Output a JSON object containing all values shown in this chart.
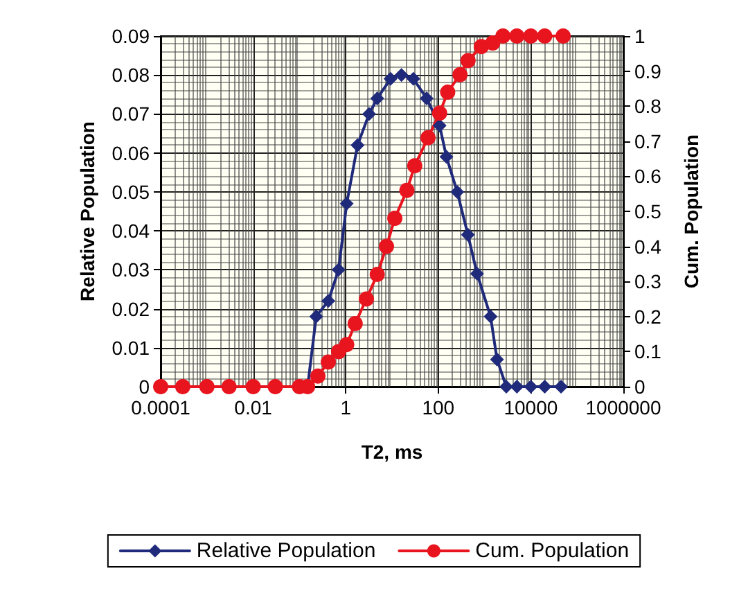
{
  "chart_data": {
    "type": "line",
    "xlabel": "T2, ms",
    "ylabel": "Relative Population",
    "y2label": "Cum. Population",
    "log": "x",
    "xlim": [
      0.0001,
      1000000
    ],
    "xticks": [
      0.0001,
      0.01,
      1,
      100,
      10000,
      1000000
    ],
    "ylim": [
      0,
      0.09
    ],
    "yticks": [
      0,
      0.01,
      0.02,
      0.03,
      0.04,
      0.05,
      0.06,
      0.07,
      0.08,
      0.09
    ],
    "y2lim": [
      0,
      1
    ],
    "y2ticks": [
      0,
      0.1,
      0.2,
      0.3,
      0.4,
      0.5,
      0.6,
      0.7,
      0.8,
      0.9,
      1
    ],
    "grid": true,
    "legend": "bottom",
    "line_style": "solid",
    "series": [
      {
        "name": "Relative Population",
        "color": "#1f2a7a",
        "marker": "diamond",
        "x": [
          0.15,
          0.23,
          0.42,
          0.7,
          1.05,
          1.8,
          3.2,
          4.8,
          9.3,
          16,
          29,
          56,
          107,
          150,
          257,
          437,
          690,
          1350,
          1860,
          2950,
          5000,
          10000,
          20000,
          45000
        ],
        "values": [
          0,
          0.018,
          0.022,
          0.03,
          0.047,
          0.062,
          0.07,
          0.074,
          0.079,
          0.08,
          0.079,
          0.074,
          0.067,
          0.059,
          0.05,
          0.039,
          0.029,
          0.018,
          0.007,
          0,
          0,
          0,
          0,
          0
        ]
      },
      {
        "name": "Cum. Population",
        "color": "#e8141e",
        "marker": "circle",
        "axis": "y2",
        "x": [
          0.0001,
          0.0003,
          0.001,
          0.003,
          0.01,
          0.03,
          0.1,
          0.15,
          0.25,
          0.42,
          0.7,
          1.05,
          1.6,
          2.8,
          4.8,
          7.6,
          11.5,
          21,
          31,
          60,
          107,
          160,
          295,
          440,
          850,
          1500,
          2500,
          5000,
          10000,
          20000,
          50000
        ],
        "values": [
          0,
          0,
          0,
          0,
          0,
          0,
          0,
          0,
          0.03,
          0.07,
          0.1,
          0.12,
          0.18,
          0.25,
          0.32,
          0.4,
          0.48,
          0.56,
          0.63,
          0.71,
          0.78,
          0.84,
          0.89,
          0.93,
          0.97,
          0.98,
          1,
          1,
          1,
          1,
          1
        ]
      }
    ]
  }
}
